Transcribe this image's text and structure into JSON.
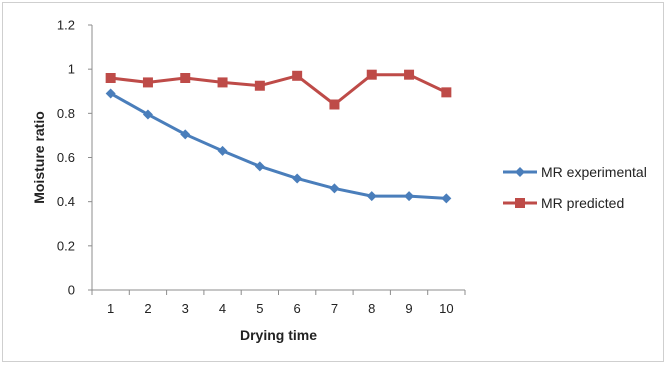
{
  "chart_data": {
    "type": "line",
    "x": [
      1,
      2,
      3,
      4,
      5,
      6,
      7,
      8,
      9,
      10
    ],
    "xlabel": "Drying time",
    "ylabel": "Moisture ratio",
    "ylim": [
      0,
      1.2
    ],
    "yticks": [
      "0",
      "0.2",
      "0.4",
      "0.6",
      "0.8",
      "1",
      "1.2"
    ],
    "xticks": [
      "1",
      "2",
      "3",
      "4",
      "5",
      "6",
      "7",
      "8",
      "9",
      "10"
    ],
    "legend_position": "right",
    "grid": false,
    "series": [
      {
        "name": "MR experimental",
        "color": "#4a7ebb",
        "marker": "diamond",
        "values": [
          0.89,
          0.795,
          0.705,
          0.63,
          0.56,
          0.505,
          0.46,
          0.425,
          0.425,
          0.415
        ]
      },
      {
        "name": "MR predicted",
        "color": "#be4b48",
        "marker": "square",
        "values": [
          0.96,
          0.94,
          0.96,
          0.94,
          0.925,
          0.97,
          0.84,
          0.975,
          0.975,
          0.895
        ]
      }
    ]
  }
}
